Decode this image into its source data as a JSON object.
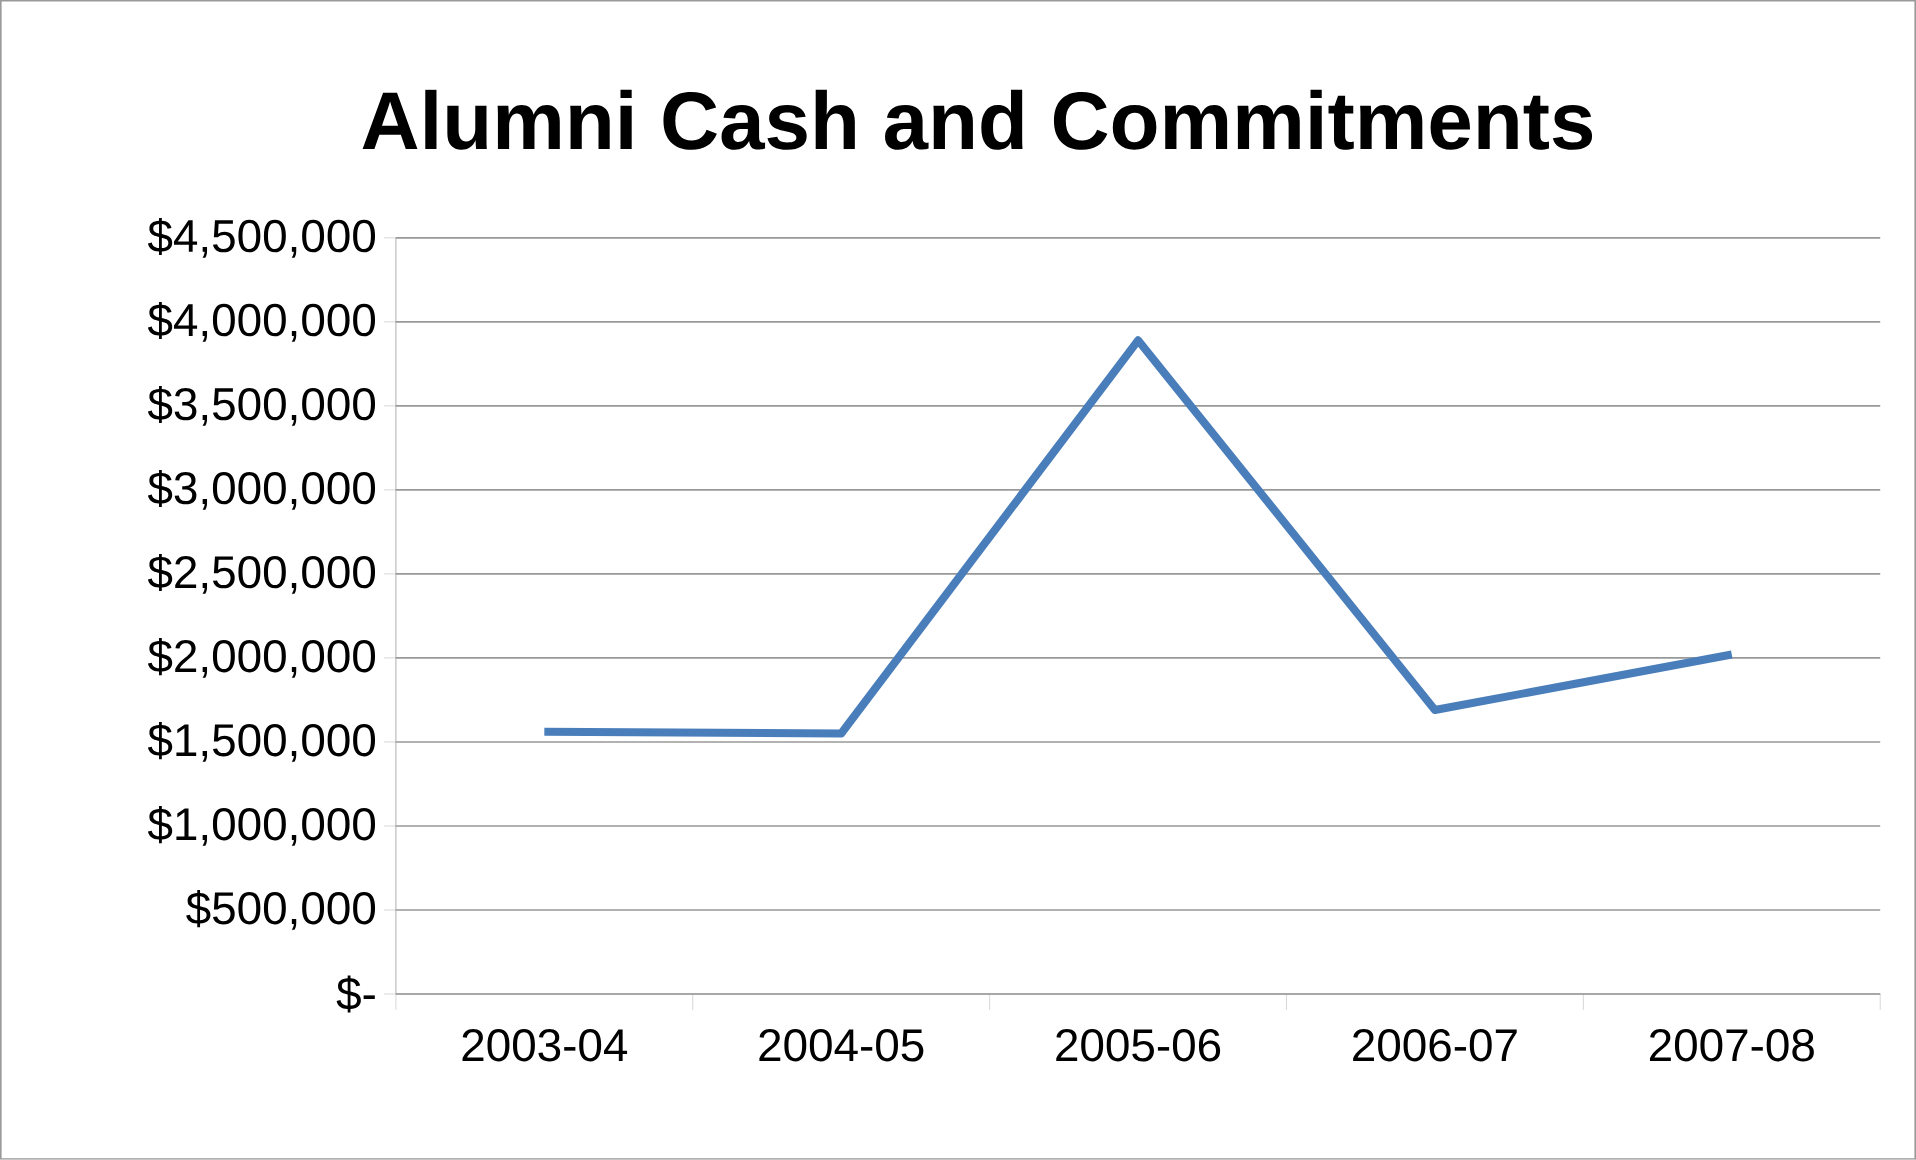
{
  "chart_data": {
    "type": "line",
    "title": "Alumni Cash and Commitments",
    "categories": [
      "2003-04",
      "2004-05",
      "2005-06",
      "2006-07",
      "2007-08"
    ],
    "values": [
      1560000,
      1550000,
      3890000,
      1690000,
      2020000
    ],
    "color": "#4a7ebb",
    "ylim": [
      0,
      4500000
    ],
    "yticks": [
      {
        "value": 0,
        "label": "$-"
      },
      {
        "value": 500000,
        "label": "$500,000"
      },
      {
        "value": 1000000,
        "label": "$1,000,000"
      },
      {
        "value": 1500000,
        "label": "$1,500,000"
      },
      {
        "value": 2000000,
        "label": "$2,000,000"
      },
      {
        "value": 2500000,
        "label": "$2,500,000"
      },
      {
        "value": 3000000,
        "label": "$3,000,000"
      },
      {
        "value": 3500000,
        "label": "$3,500,000"
      },
      {
        "value": 4000000,
        "label": "$4,000,000"
      },
      {
        "value": 4500000,
        "label": "$4,500,000"
      }
    ],
    "grid": "y",
    "marker": "none",
    "line_style": "solid"
  }
}
